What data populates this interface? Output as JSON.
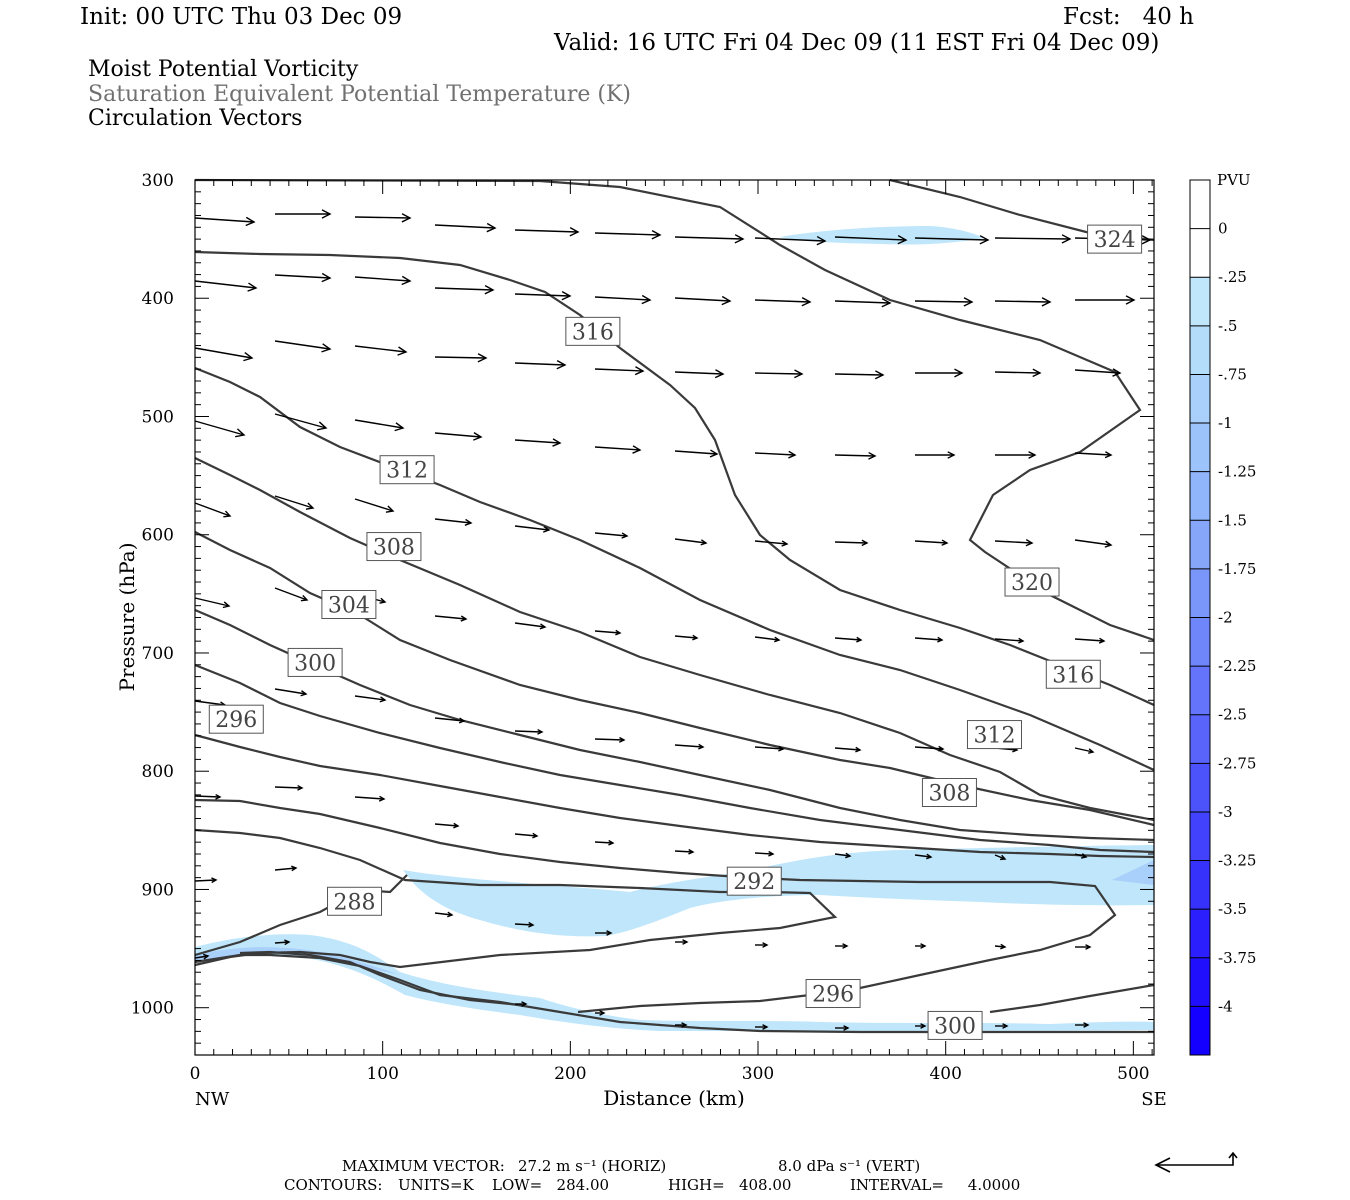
{
  "header": {
    "init": "Init: 00 UTC Thu 03 Dec 09",
    "fcst": "Fcst:   40 h",
    "valid": "Valid: 16 UTC Fri 04 Dec 09 (11 EST Fri 04 Dec 09)",
    "titles": [
      "Moist Potential Vorticity",
      "Saturation Equivalent Potential Temperature (K)",
      "Circulation Vectors"
    ]
  },
  "footer": {
    "max_label": "MAXIMUM VECTOR:",
    "max_horiz": "27.2 m s⁻¹ (HORIZ)",
    "max_vert": "8.0 dPa s⁻¹ (VERT)",
    "contours_label": "CONTOURS:",
    "units": "UNITS=K",
    "low": "LOW=   284.00",
    "high": "HIGH=   408.00",
    "interval": "INTERVAL=     4.0000"
  },
  "colors": {
    "contour": "#3a3a3a",
    "pv_light": "#bfe6fa",
    "vector": "#000000"
  },
  "chart_data": {
    "type": "cross-section",
    "xlabel": "Distance (km)",
    "ylabel": "Pressure (hPa)",
    "xlim": [
      0,
      511
    ],
    "ylim": [
      1040,
      300
    ],
    "x_ticks": [
      0,
      100,
      200,
      300,
      400,
      500
    ],
    "y_ticks": [
      300,
      400,
      500,
      600,
      700,
      800,
      900,
      1000
    ],
    "x_end_labels": {
      "left": "NW",
      "right": "SE"
    },
    "contour_labels": [
      {
        "text": "324",
        "x": 490,
        "p": 350
      },
      {
        "text": "316",
        "x": 212,
        "p": 428
      },
      {
        "text": "312",
        "x": 113,
        "p": 545
      },
      {
        "text": "308",
        "x": 106,
        "p": 610
      },
      {
        "text": "304",
        "x": 82,
        "p": 659
      },
      {
        "text": "300",
        "x": 64,
        "p": 708
      },
      {
        "text": "296",
        "x": 22,
        "p": 756
      },
      {
        "text": "288",
        "x": 85,
        "p": 910
      },
      {
        "text": "292",
        "x": 298,
        "p": 893
      },
      {
        "text": "296",
        "x": 340,
        "p": 988
      },
      {
        "text": "300",
        "x": 405,
        "p": 1015
      },
      {
        "text": "320",
        "x": 446,
        "p": 640
      },
      {
        "text": "316",
        "x": 468,
        "p": 718
      },
      {
        "text": "312",
        "x": 426,
        "p": 769
      },
      {
        "text": "308",
        "x": 402,
        "p": 818
      }
    ],
    "colorbar": {
      "unit": "PVU",
      "labels": [
        "0",
        "-.25",
        "-.5",
        "-.75",
        "-1",
        "-1.25",
        "-1.5",
        "-1.75",
        "-2",
        "-2.25",
        "-2.5",
        "-2.75",
        "-3",
        "-3.25",
        "-3.5",
        "-3.75",
        "-4"
      ],
      "colors": [
        "#ffffff",
        "#ffffff",
        "#bfe6fa",
        "#b3dcfa",
        "#a8d0fa",
        "#9cc3fa",
        "#91b5fa",
        "#86a6fa",
        "#7a96fa",
        "#6f86fb",
        "#6475fb",
        "#5964fb",
        "#4d53fb",
        "#4242fc",
        "#3731fc",
        "#2b20fd",
        "#200ffd",
        "#1400fe"
      ]
    }
  }
}
